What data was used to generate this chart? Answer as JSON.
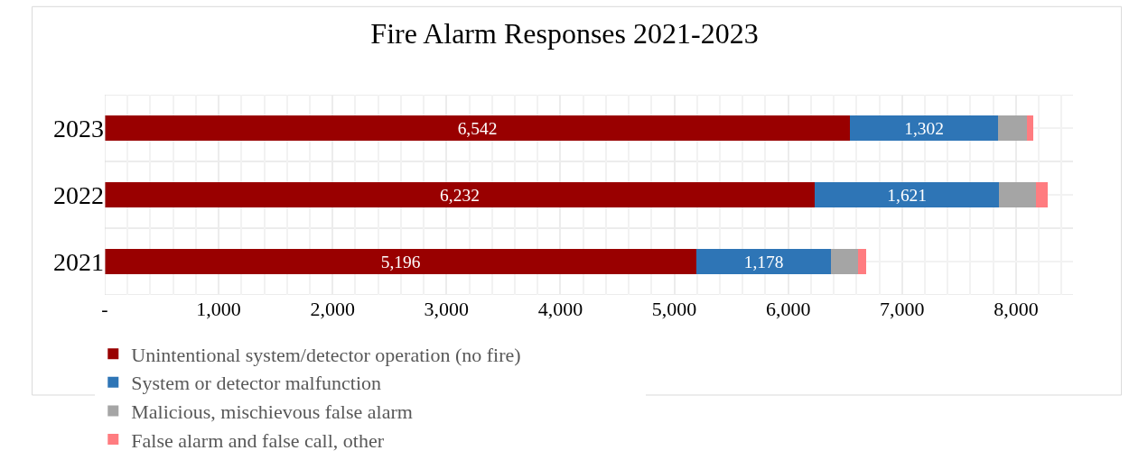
{
  "chart_data": {
    "type": "bar",
    "orientation": "horizontal",
    "stacked": true,
    "title": "Fire Alarm Responses 2021-2023",
    "categories": [
      "2023",
      "2022",
      "2021"
    ],
    "series": [
      {
        "name": "Unintentional system/detector operation (no fire)",
        "color": "#990000",
        "values": [
          6542,
          6232,
          5196
        ],
        "value_labels": [
          "6,542",
          "6,232",
          "5,196"
        ]
      },
      {
        "name": "System or detector malfunction",
        "color": "#2e75b6",
        "values": [
          1302,
          1621,
          1178
        ],
        "value_labels": [
          "1,302",
          "1,621",
          "1,178"
        ]
      },
      {
        "name": "Malicious, mischievous false alarm",
        "color": "#a5a5a5",
        "values": [
          250,
          325,
          238
        ]
      },
      {
        "name": "False alarm and false call, other",
        "color": "#ff7c80",
        "values": [
          55,
          103,
          71
        ]
      }
    ],
    "xlim": [
      0,
      8500
    ],
    "xticks": [
      {
        "value": 0,
        "label": "-"
      },
      {
        "value": 1000,
        "label": "1,000"
      },
      {
        "value": 2000,
        "label": "2,000"
      },
      {
        "value": 3000,
        "label": "3,000"
      },
      {
        "value": 4000,
        "label": "4,000"
      },
      {
        "value": 5000,
        "label": "5,000"
      },
      {
        "value": 6000,
        "label": "6,000"
      },
      {
        "value": 7000,
        "label": "7,000"
      },
      {
        "value": 8000,
        "label": "8,000"
      }
    ],
    "grid": true,
    "legend": "bottom"
  }
}
